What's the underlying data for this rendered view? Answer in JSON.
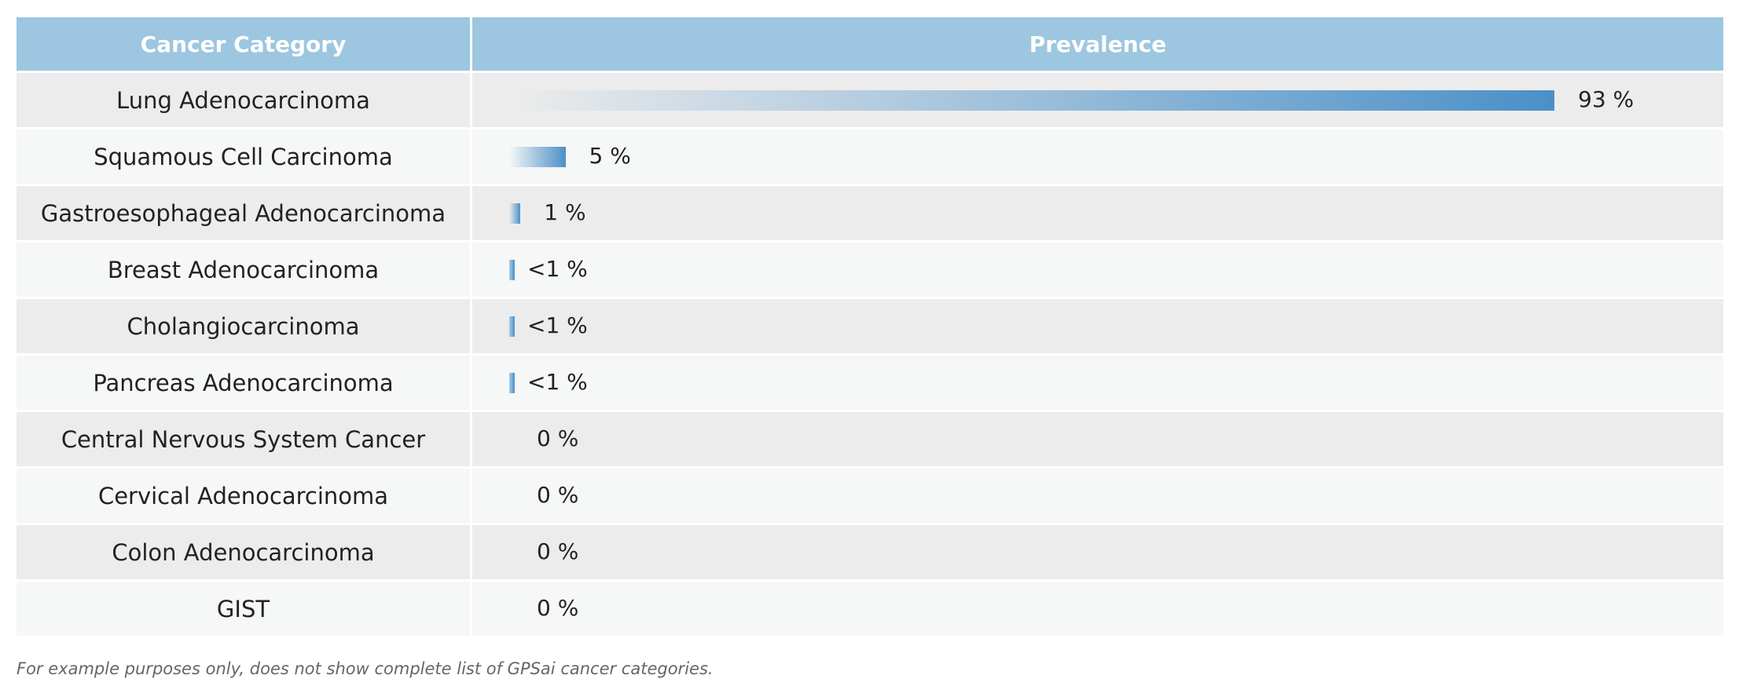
{
  "chart_data": {
    "type": "table",
    "columns": [
      "Cancer Category",
      "Prevalence"
    ],
    "rows": [
      {
        "category": "Lung Adenocarcinoma",
        "value": 93,
        "label": "93 %"
      },
      {
        "category": "Squamous Cell Carcinoma",
        "value": 5,
        "label": "5 %"
      },
      {
        "category": "Gastroesophageal Adenocarcinoma",
        "value": 1,
        "label": "1 %"
      },
      {
        "category": "Breast Adenocarcinoma",
        "value": 0.5,
        "label": "<1 %"
      },
      {
        "category": "Cholangiocarcinoma",
        "value": 0.5,
        "label": "<1 %"
      },
      {
        "category": "Pancreas Adenocarcinoma",
        "value": 0.5,
        "label": "<1 %"
      },
      {
        "category": "Central Nervous System Cancer",
        "value": 0,
        "label": "0 %"
      },
      {
        "category": "Cervical Adenocarcinoma",
        "value": 0,
        "label": "0 %"
      },
      {
        "category": "Colon Adenocarcinoma",
        "value": 0,
        "label": "0 %"
      },
      {
        "category": "GIST",
        "value": 0,
        "label": "0 %"
      }
    ],
    "xlim": [
      0,
      100
    ],
    "bar_color": "#4a90c8",
    "header_color": "#9dc6e0"
  },
  "footnote": "For example purposes only, does not show complete list of GPSai cancer categories."
}
